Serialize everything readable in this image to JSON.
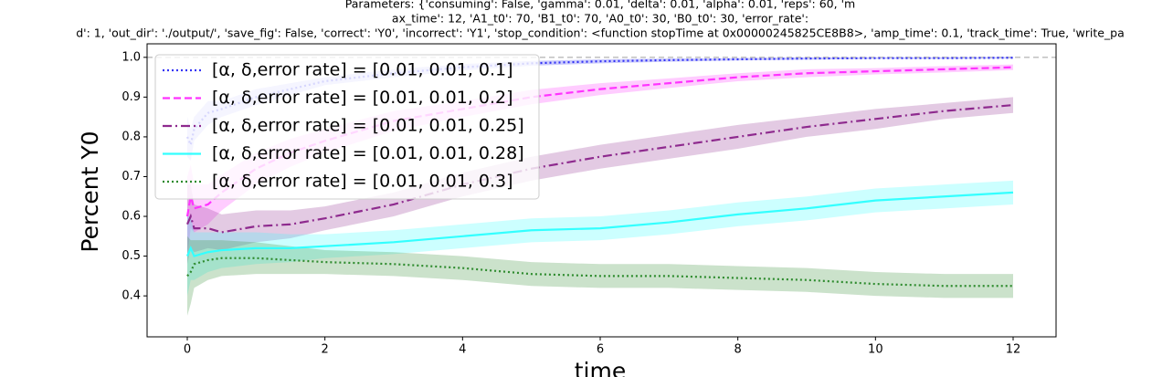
{
  "chart_data": {
    "type": "line",
    "title": [
      "Parameters: {'consuming': False, 'gamma': 0.01, 'delta': 0.01, 'alpha': 0.01, 'reps': 60, 'm",
      "ax_time': 12, 'A1_t0': 70, 'B1_t0': 70, 'A0_t0': 30, 'B0_t0': 30, 'error_rate':",
      "d': 1, 'out_dir': './output/', 'save_fig': False, 'correct': 'Y0', 'incorrect': 'Y1', 'stop_condition': <function stopTime at 0x00000245825CE8B8>, 'amp_time': 0.1, 'track_time': True, 'write_pa"
    ],
    "xlabel": "time",
    "ylabel": "Percent Y0",
    "x": [
      0,
      0.05,
      0.1,
      0.3,
      0.5,
      1,
      1.5,
      2,
      3,
      4,
      5,
      6,
      7,
      8,
      9,
      10,
      11,
      12
    ],
    "xlim": [
      -0.584,
      12.624
    ],
    "xticks": [
      0,
      2,
      4,
      6,
      8,
      10,
      12
    ],
    "ylim": [
      0.297,
      1.034
    ],
    "yticks": [
      0.4,
      0.5,
      0.6,
      0.7,
      0.8,
      0.9,
      {
        "value": 1,
        "label": "1.0"
      }
    ],
    "reference_line": {
      "value": 1,
      "color": "#bbbbbb"
    },
    "legend": "upper left",
    "series": [
      {
        "name": "[α, δ,error rate] = [0.01, 0.01, 0.1]",
        "color": "#3434f5",
        "style": "dotted",
        "values": [
          0.8,
          0.78,
          0.82,
          0.86,
          0.87,
          0.9,
          0.92,
          0.94,
          0.96,
          0.975,
          0.985,
          0.99,
          0.993,
          0.995,
          0.997,
          0.998,
          0.998,
          0.999
        ],
        "errors": [
          0.05,
          0.04,
          0.03,
          0.03,
          0.02,
          0.02,
          0.015,
          0.01,
          0.01,
          0.008,
          0.006,
          0.005,
          0.004,
          0.003,
          0.003,
          0.002,
          0.002,
          0.002
        ]
      },
      {
        "name": "[α, δ,error rate] = [0.01, 0.01, 0.2]",
        "color": "#ff33ff",
        "style": "dashed",
        "values": [
          0.6,
          0.65,
          0.62,
          0.63,
          0.66,
          0.72,
          0.76,
          0.79,
          0.84,
          0.87,
          0.9,
          0.92,
          0.935,
          0.95,
          0.96,
          0.965,
          0.97,
          0.975
        ],
        "errors": [
          0.1,
          0.08,
          0.06,
          0.05,
          0.045,
          0.04,
          0.035,
          0.03,
          0.025,
          0.02,
          0.018,
          0.015,
          0.012,
          0.01,
          0.01,
          0.008,
          0.008,
          0.007
        ]
      },
      {
        "name": "[α, δ,error rate] = [0.01, 0.01, 0.25]",
        "color": "#8e2a8e",
        "style": "dashdot",
        "values": [
          0.58,
          0.6,
          0.57,
          0.57,
          0.56,
          0.575,
          0.58,
          0.595,
          0.63,
          0.68,
          0.72,
          0.75,
          0.775,
          0.8,
          0.825,
          0.845,
          0.865,
          0.88
        ],
        "errors": [
          0.1,
          0.08,
          0.06,
          0.05,
          0.045,
          0.04,
          0.035,
          0.03,
          0.03,
          0.03,
          0.03,
          0.03,
          0.03,
          0.03,
          0.025,
          0.025,
          0.02,
          0.02
        ]
      },
      {
        "name": "[α, δ,error rate] = [0.01, 0.01, 0.28]",
        "color": "#33ffff",
        "style": "solid",
        "values": [
          0.5,
          0.52,
          0.5,
          0.51,
          0.515,
          0.52,
          0.52,
          0.525,
          0.535,
          0.55,
          0.565,
          0.57,
          0.585,
          0.605,
          0.62,
          0.64,
          0.65,
          0.66
        ],
        "errors": [
          0.1,
          0.08,
          0.06,
          0.05,
          0.045,
          0.04,
          0.035,
          0.03,
          0.03,
          0.03,
          0.03,
          0.03,
          0.03,
          0.03,
          0.03,
          0.03,
          0.03,
          0.03
        ]
      },
      {
        "name": "[α, δ,error rate] = [0.01, 0.01, 0.3]",
        "color": "#2e8b2e",
        "style": "dotted",
        "values": [
          0.45,
          0.46,
          0.48,
          0.49,
          0.495,
          0.495,
          0.49,
          0.485,
          0.48,
          0.47,
          0.455,
          0.45,
          0.45,
          0.445,
          0.44,
          0.43,
          0.425,
          0.425
        ],
        "errors": [
          0.1,
          0.08,
          0.06,
          0.05,
          0.045,
          0.04,
          0.035,
          0.03,
          0.03,
          0.03,
          0.03,
          0.03,
          0.03,
          0.03,
          0.03,
          0.03,
          0.03,
          0.03
        ]
      }
    ]
  }
}
